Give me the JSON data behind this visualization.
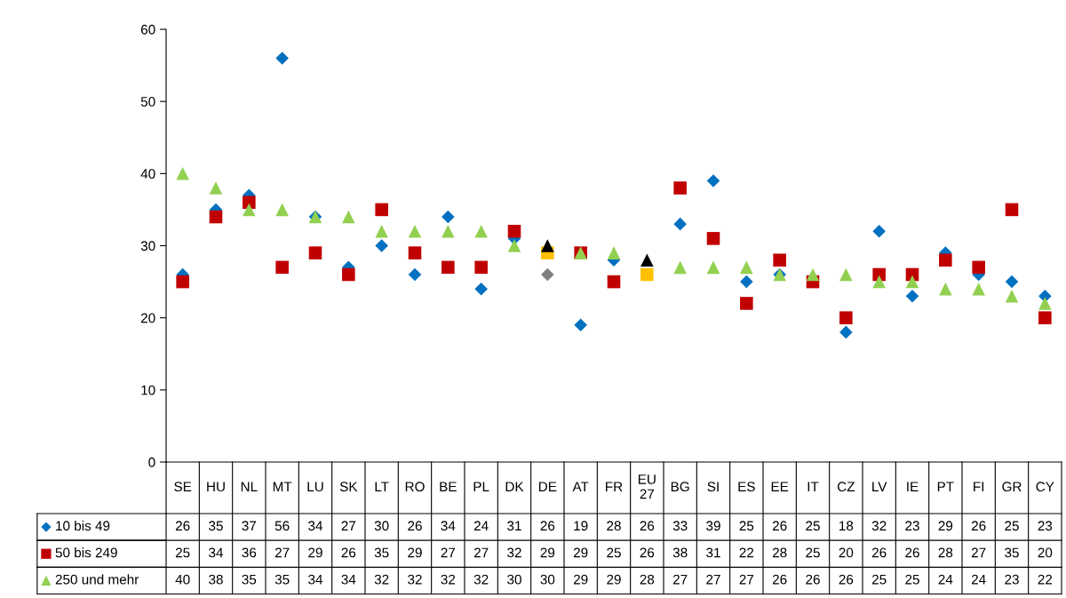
{
  "chart_data": {
    "type": "scatter",
    "categories": [
      "SE",
      "HU",
      "NL",
      "MT",
      "LU",
      "SK",
      "LT",
      "RO",
      "BE",
      "PL",
      "DK",
      "DE",
      "AT",
      "FR",
      "EU\n27",
      "BG",
      "SI",
      "ES",
      "EE",
      "IT",
      "CZ",
      "LV",
      "IE",
      "PT",
      "FI",
      "GR",
      "CY"
    ],
    "series": [
      {
        "name": "10 bis 49",
        "color": "#0070c0",
        "marker": "diamond",
        "colors": [
          "#0070c0",
          "#0070c0",
          "#0070c0",
          "#0070c0",
          "#0070c0",
          "#0070c0",
          "#0070c0",
          "#0070c0",
          "#0070c0",
          "#0070c0",
          "#0070c0",
          "#808080",
          "#0070c0",
          "#0070c0",
          "#808080",
          "#0070c0",
          "#0070c0",
          "#0070c0",
          "#0070c0",
          "#0070c0",
          "#0070c0",
          "#0070c0",
          "#0070c0",
          "#0070c0",
          "#0070c0",
          "#0070c0",
          "#0070c0"
        ],
        "values": [
          26,
          35,
          37,
          56,
          34,
          27,
          30,
          26,
          34,
          24,
          31,
          26,
          19,
          28,
          null,
          33,
          39,
          25,
          26,
          null,
          18,
          32,
          23,
          29,
          26,
          25,
          23
        ],
        "value_labels": [
          "26",
          "35",
          "37",
          "56",
          "34",
          "27",
          "30",
          "26",
          "34",
          "24",
          "31",
          "26",
          "19",
          "28",
          "26",
          "33",
          "39",
          "25",
          "26",
          "25",
          "18",
          "32",
          "23",
          "29",
          "26",
          "25",
          "23"
        ]
      },
      {
        "name": "50 bis 249",
        "color": "#c00000",
        "marker": "square",
        "colors": [
          "#c00000",
          "#c00000",
          "#c00000",
          "#c00000",
          "#c00000",
          "#c00000",
          "#c00000",
          "#c00000",
          "#c00000",
          "#c00000",
          "#c00000",
          "#ffc000",
          "#c00000",
          "#c00000",
          "#ffc000",
          "#c00000",
          "#c00000",
          "#c00000",
          "#c00000",
          "#c00000",
          "#c00000",
          "#c00000",
          "#c00000",
          "#c00000",
          "#c00000",
          "#c00000",
          "#c00000"
        ],
        "values": [
          25,
          34,
          36,
          27,
          29,
          26,
          35,
          29,
          27,
          27,
          32,
          29,
          29,
          25,
          26,
          38,
          31,
          22,
          28,
          25,
          20,
          26,
          26,
          28,
          27,
          35,
          20
        ],
        "value_labels": [
          "25",
          "34",
          "36",
          "27",
          "29",
          "26",
          "35",
          "29",
          "27",
          "27",
          "32",
          "29",
          "29",
          "25",
          "26",
          "38",
          "31",
          "22",
          "28",
          "25",
          "20",
          "26",
          "26",
          "28",
          "27",
          "35",
          "20"
        ]
      },
      {
        "name": "250 und mehr",
        "color": "#92d050",
        "marker": "triangle",
        "colors": [
          "#92d050",
          "#92d050",
          "#92d050",
          "#92d050",
          "#92d050",
          "#92d050",
          "#92d050",
          "#92d050",
          "#92d050",
          "#92d050",
          "#92d050",
          "#000000",
          "#92d050",
          "#92d050",
          "#000000",
          "#92d050",
          "#92d050",
          "#92d050",
          "#92d050",
          "#92d050",
          "#92d050",
          "#92d050",
          "#92d050",
          "#92d050",
          "#92d050",
          "#92d050",
          "#92d050"
        ],
        "values": [
          40,
          38,
          35,
          35,
          34,
          34,
          32,
          32,
          32,
          32,
          30,
          30,
          29,
          29,
          28,
          27,
          27,
          27,
          26,
          26,
          26,
          25,
          25,
          24,
          24,
          23,
          22
        ],
        "value_labels": [
          "40",
          "38",
          "35",
          "35",
          "34",
          "34",
          "32",
          "32",
          "32",
          "32",
          "30",
          "30",
          "29",
          "29",
          "28",
          "27",
          "27",
          "27",
          "26",
          "26",
          "26",
          "25",
          "25",
          "24",
          "24",
          "23",
          "22"
        ]
      }
    ],
    "ylim": [
      0,
      60
    ],
    "yticks": [
      0,
      10,
      20,
      30,
      40,
      50,
      60
    ],
    "grid": false,
    "legend": "bottom left"
  }
}
